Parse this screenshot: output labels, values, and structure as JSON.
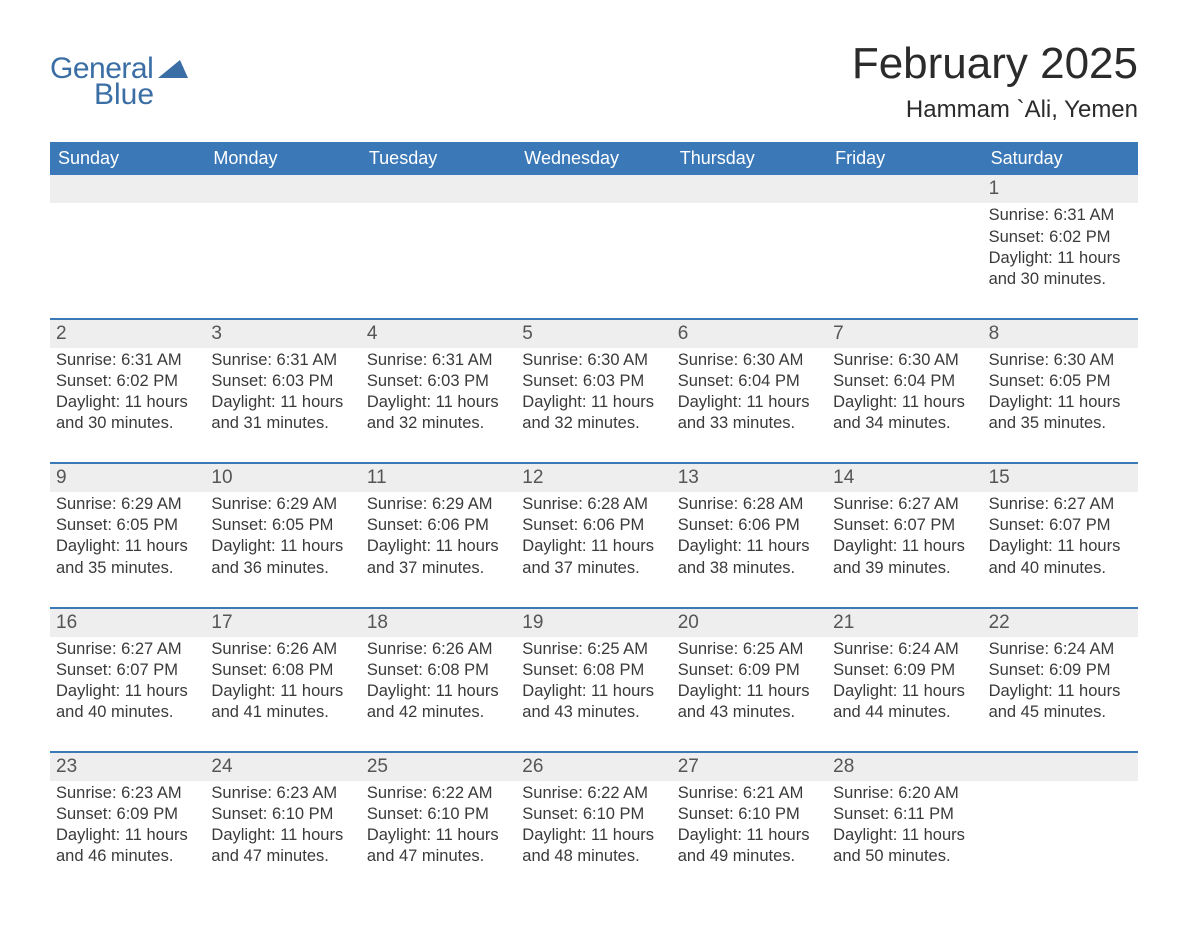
{
  "brand": {
    "word1": "General",
    "word2": "Blue",
    "brand_color": "#3b6ea5"
  },
  "title": "February 2025",
  "location": "Hammam `Ali, Yemen",
  "colors": {
    "header_bg": "#3b78b8",
    "header_fg": "#ffffff",
    "strip_bg": "#eeeeee",
    "strip_border": "#3b78b8",
    "text": "#3a3a3a",
    "daynum": "#555555",
    "page_bg": "#ffffff"
  },
  "weekdays": [
    "Sunday",
    "Monday",
    "Tuesday",
    "Wednesday",
    "Thursday",
    "Friday",
    "Saturday"
  ],
  "weeks": [
    {
      "daynums": [
        "",
        "",
        "",
        "",
        "",
        "",
        "1"
      ],
      "details": [
        null,
        null,
        null,
        null,
        null,
        null,
        {
          "sunrise": "6:31 AM",
          "sunset": "6:02 PM",
          "daylight": "11 hours and 30 minutes."
        }
      ]
    },
    {
      "daynums": [
        "2",
        "3",
        "4",
        "5",
        "6",
        "7",
        "8"
      ],
      "details": [
        {
          "sunrise": "6:31 AM",
          "sunset": "6:02 PM",
          "daylight": "11 hours and 30 minutes."
        },
        {
          "sunrise": "6:31 AM",
          "sunset": "6:03 PM",
          "daylight": "11 hours and 31 minutes."
        },
        {
          "sunrise": "6:31 AM",
          "sunset": "6:03 PM",
          "daylight": "11 hours and 32 minutes."
        },
        {
          "sunrise": "6:30 AM",
          "sunset": "6:03 PM",
          "daylight": "11 hours and 32 minutes."
        },
        {
          "sunrise": "6:30 AM",
          "sunset": "6:04 PM",
          "daylight": "11 hours and 33 minutes."
        },
        {
          "sunrise": "6:30 AM",
          "sunset": "6:04 PM",
          "daylight": "11 hours and 34 minutes."
        },
        {
          "sunrise": "6:30 AM",
          "sunset": "6:05 PM",
          "daylight": "11 hours and 35 minutes."
        }
      ]
    },
    {
      "daynums": [
        "9",
        "10",
        "11",
        "12",
        "13",
        "14",
        "15"
      ],
      "details": [
        {
          "sunrise": "6:29 AM",
          "sunset": "6:05 PM",
          "daylight": "11 hours and 35 minutes."
        },
        {
          "sunrise": "6:29 AM",
          "sunset": "6:05 PM",
          "daylight": "11 hours and 36 minutes."
        },
        {
          "sunrise": "6:29 AM",
          "sunset": "6:06 PM",
          "daylight": "11 hours and 37 minutes."
        },
        {
          "sunrise": "6:28 AM",
          "sunset": "6:06 PM",
          "daylight": "11 hours and 37 minutes."
        },
        {
          "sunrise": "6:28 AM",
          "sunset": "6:06 PM",
          "daylight": "11 hours and 38 minutes."
        },
        {
          "sunrise": "6:27 AM",
          "sunset": "6:07 PM",
          "daylight": "11 hours and 39 minutes."
        },
        {
          "sunrise": "6:27 AM",
          "sunset": "6:07 PM",
          "daylight": "11 hours and 40 minutes."
        }
      ]
    },
    {
      "daynums": [
        "16",
        "17",
        "18",
        "19",
        "20",
        "21",
        "22"
      ],
      "details": [
        {
          "sunrise": "6:27 AM",
          "sunset": "6:07 PM",
          "daylight": "11 hours and 40 minutes."
        },
        {
          "sunrise": "6:26 AM",
          "sunset": "6:08 PM",
          "daylight": "11 hours and 41 minutes."
        },
        {
          "sunrise": "6:26 AM",
          "sunset": "6:08 PM",
          "daylight": "11 hours and 42 minutes."
        },
        {
          "sunrise": "6:25 AM",
          "sunset": "6:08 PM",
          "daylight": "11 hours and 43 minutes."
        },
        {
          "sunrise": "6:25 AM",
          "sunset": "6:09 PM",
          "daylight": "11 hours and 43 minutes."
        },
        {
          "sunrise": "6:24 AM",
          "sunset": "6:09 PM",
          "daylight": "11 hours and 44 minutes."
        },
        {
          "sunrise": "6:24 AM",
          "sunset": "6:09 PM",
          "daylight": "11 hours and 45 minutes."
        }
      ]
    },
    {
      "daynums": [
        "23",
        "24",
        "25",
        "26",
        "27",
        "28",
        ""
      ],
      "details": [
        {
          "sunrise": "6:23 AM",
          "sunset": "6:09 PM",
          "daylight": "11 hours and 46 minutes."
        },
        {
          "sunrise": "6:23 AM",
          "sunset": "6:10 PM",
          "daylight": "11 hours and 47 minutes."
        },
        {
          "sunrise": "6:22 AM",
          "sunset": "6:10 PM",
          "daylight": "11 hours and 47 minutes."
        },
        {
          "sunrise": "6:22 AM",
          "sunset": "6:10 PM",
          "daylight": "11 hours and 48 minutes."
        },
        {
          "sunrise": "6:21 AM",
          "sunset": "6:10 PM",
          "daylight": "11 hours and 49 minutes."
        },
        {
          "sunrise": "6:20 AM",
          "sunset": "6:11 PM",
          "daylight": "11 hours and 50 minutes."
        },
        null
      ]
    }
  ],
  "labels": {
    "sunrise": "Sunrise:",
    "sunset": "Sunset:",
    "daylight": "Daylight:"
  }
}
